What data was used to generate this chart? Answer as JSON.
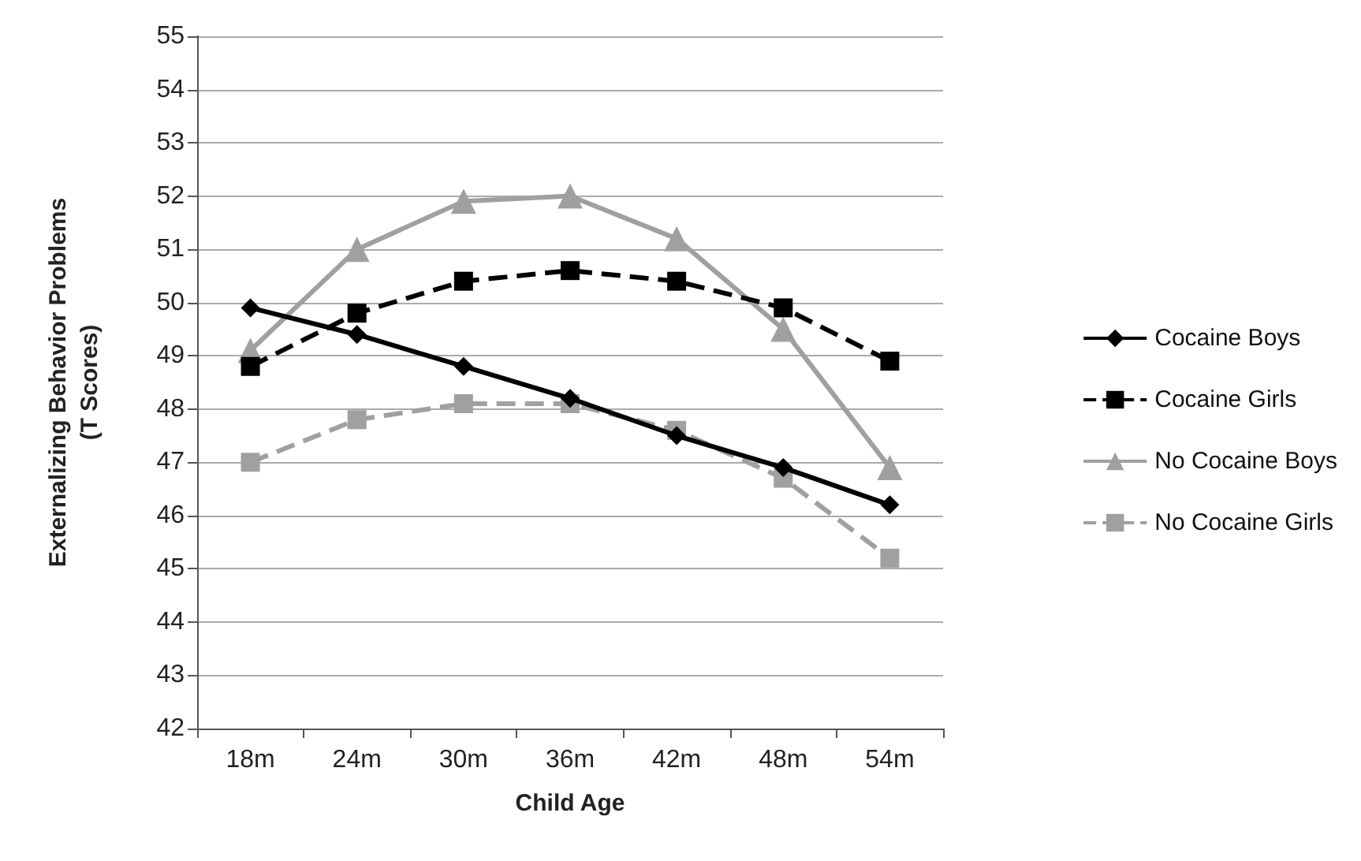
{
  "chart_data": {
    "type": "line",
    "xlabel": "Child Age",
    "ylabel": "Externalizing Behavior Problems\n(T Scores)",
    "categories": [
      "18m",
      "24m",
      "30m",
      "36m",
      "42m",
      "48m",
      "54m"
    ],
    "series": [
      {
        "name": "Cocaine Boys",
        "color": "#000000",
        "marker": "diamond",
        "line_style": "solid",
        "values": [
          49.9,
          49.4,
          48.8,
          48.2,
          47.5,
          46.9,
          46.2
        ]
      },
      {
        "name": "Cocaine Girls",
        "color": "#000000",
        "marker": "square",
        "line_style": "dashed",
        "values": [
          48.8,
          49.8,
          50.4,
          50.6,
          50.4,
          49.9,
          48.9
        ]
      },
      {
        "name": "No Cocaine Boys",
        "color": "#a0a0a0",
        "marker": "triangle",
        "line_style": "solid",
        "values": [
          49.1,
          51.0,
          51.9,
          52.0,
          51.2,
          49.5,
          46.9
        ]
      },
      {
        "name": "No Cocaine Girls",
        "color": "#a0a0a0",
        "marker": "square",
        "line_style": "dashed",
        "values": [
          47.0,
          47.8,
          48.1,
          48.1,
          47.6,
          46.7,
          45.2
        ]
      }
    ],
    "ylim": [
      42,
      55
    ],
    "yticks": [
      42,
      43,
      44,
      45,
      46,
      47,
      48,
      49,
      50,
      51,
      52,
      53,
      54,
      55
    ],
    "grid": "y",
    "legend": "right"
  }
}
